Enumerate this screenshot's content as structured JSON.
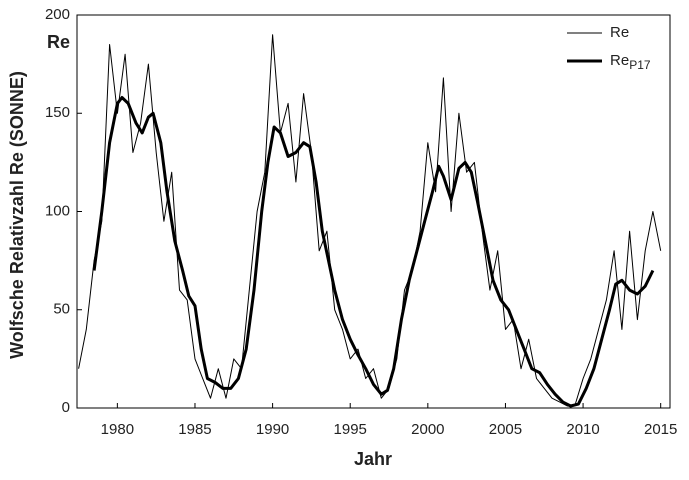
{
  "chart_data": {
    "type": "line",
    "unit_label": "Re",
    "xlabel": "Jahr",
    "ylabel": "Wolfsche Relativzahl Re (SONNE)",
    "xlim": [
      1977.4,
      2015.6
    ],
    "xticks": [
      1980,
      1985,
      1990,
      1995,
      2000,
      2005,
      2010,
      2015
    ],
    "ylim": [
      0,
      200
    ],
    "yticks": [
      0,
      50,
      100,
      150,
      200
    ],
    "legend": "upper right",
    "series": [
      {
        "name": "Re",
        "color": "#000000",
        "width": 1,
        "x": [
          1977.5,
          1978,
          1978.5,
          1979,
          1979.5,
          1980,
          1980.5,
          1981,
          1981.5,
          1982,
          1982.5,
          1983,
          1983.5,
          1984,
          1984.5,
          1985,
          1985.5,
          1986,
          1986.5,
          1987,
          1987.5,
          1988,
          1988.5,
          1989,
          1989.5,
          1990,
          1990.5,
          1991,
          1991.5,
          1992,
          1992.5,
          1993,
          1993.5,
          1994,
          1994.5,
          1995,
          1995.5,
          1996,
          1996.5,
          1997,
          1997.5,
          1998,
          1998.5,
          1999,
          1999.5,
          2000,
          2000.5,
          2001,
          2001.5,
          2002,
          2002.5,
          2003,
          2003.5,
          2004,
          2004.5,
          2005,
          2005.5,
          2006,
          2006.5,
          2007,
          2007.5,
          2008,
          2008.5,
          2009,
          2009.5,
          2010,
          2010.5,
          2011,
          2011.5,
          2012,
          2012.5,
          2013,
          2013.5,
          2014,
          2014.5,
          2015
        ],
        "values": [
          20,
          40,
          75,
          95,
          185,
          150,
          180,
          130,
          145,
          175,
          130,
          95,
          120,
          60,
          55,
          25,
          15,
          5,
          20,
          5,
          25,
          20,
          60,
          100,
          120,
          190,
          140,
          155,
          115,
          160,
          130,
          80,
          90,
          50,
          40,
          25,
          30,
          15,
          20,
          5,
          10,
          25,
          60,
          70,
          90,
          135,
          110,
          168,
          100,
          150,
          120,
          125,
          90,
          60,
          80,
          40,
          45,
          20,
          35,
          15,
          10,
          5,
          3,
          1,
          2,
          15,
          25,
          40,
          55,
          80,
          40,
          90,
          45,
          80,
          100,
          80
        ]
      },
      {
        "name": "Re",
        "name_subscript": "P17",
        "color": "#000000",
        "width": 3,
        "x": [
          1978.5,
          1979,
          1979.5,
          1980,
          1980.3,
          1980.7,
          1981.2,
          1981.6,
          1982,
          1982.3,
          1982.8,
          1983.2,
          1983.7,
          1984.2,
          1984.6,
          1985,
          1985.4,
          1985.8,
          1986.3,
          1986.8,
          1987.3,
          1987.8,
          1988.3,
          1988.8,
          1989.3,
          1989.7,
          1990.1,
          1990.5,
          1991,
          1991.5,
          1992,
          1992.4,
          1992.8,
          1993.2,
          1993.6,
          1994,
          1994.5,
          1995,
          1995.5,
          1996,
          1996.5,
          1997,
          1997.4,
          1997.8,
          1998.3,
          1998.8,
          1999.3,
          1999.8,
          2000.3,
          2000.7,
          2001,
          2001.5,
          2002,
          2002.4,
          2002.8,
          2003.2,
          2003.7,
          2004.2,
          2004.7,
          2005.2,
          2005.7,
          2006.2,
          2006.7,
          2007.2,
          2007.7,
          2008.2,
          2008.7,
          2009.2,
          2009.7,
          2010.2,
          2010.7,
          2011.2,
          2011.7,
          2012.1,
          2012.5,
          2013,
          2013.5,
          2014,
          2014.5
        ],
        "values": [
          70,
          100,
          135,
          155,
          158,
          155,
          145,
          140,
          148,
          150,
          135,
          110,
          85,
          70,
          57,
          52,
          30,
          15,
          13,
          10,
          10,
          15,
          30,
          60,
          100,
          125,
          143,
          140,
          128,
          130,
          135,
          133,
          115,
          90,
          75,
          60,
          45,
          35,
          27,
          20,
          12,
          7,
          9,
          20,
          45,
          65,
          80,
          95,
          110,
          123,
          118,
          106,
          122,
          125,
          120,
          105,
          85,
          65,
          55,
          50,
          40,
          30,
          20,
          18,
          12,
          7,
          3,
          1,
          2,
          10,
          20,
          35,
          50,
          63,
          65,
          60,
          58,
          62,
          70
        ]
      }
    ]
  }
}
